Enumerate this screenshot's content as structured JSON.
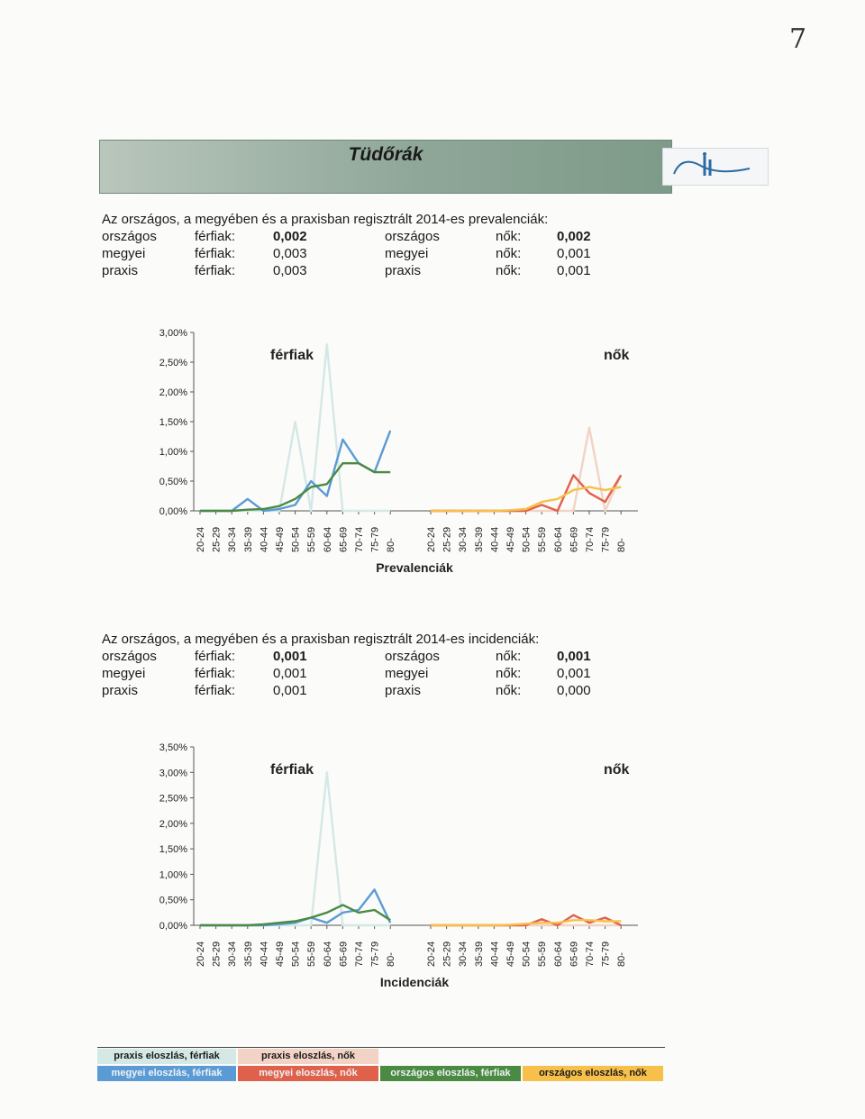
{
  "page_number": "7",
  "banner": {
    "title": "Tüdőrák"
  },
  "prevalence": {
    "heading": "Az országos, a megyében és a praxisban regisztrált 2014-es prevalenciák:",
    "rows": [
      {
        "label_m": "országos",
        "sex_m": "férfiak:",
        "val_m": "0,002",
        "label_f": "országos",
        "sex_f": "nők:",
        "val_f": "0,002"
      },
      {
        "label_m": "megyei",
        "sex_m": "férfiak:",
        "val_m": "0,003",
        "label_f": "megyei",
        "sex_f": "nők:",
        "val_f": "0,001"
      },
      {
        "label_m": "praxis",
        "sex_m": "férfiak:",
        "val_m": "0,003",
        "label_f": "praxis",
        "sex_f": "nők:",
        "val_f": "0,001"
      }
    ]
  },
  "incidence": {
    "heading": "Az országos, a megyében és a praxisban regisztrált 2014-es incidenciák:",
    "rows": [
      {
        "label_m": "országos",
        "sex_m": "férfiak:",
        "val_m": "0,001",
        "label_f": "országos",
        "sex_f": "nők:",
        "val_f": "0,001"
      },
      {
        "label_m": "megyei",
        "sex_m": "férfiak:",
        "val_m": "0,001",
        "label_f": "megyei",
        "sex_f": "nők:",
        "val_f": "0,001"
      },
      {
        "label_m": "praxis",
        "sex_m": "férfiak:",
        "val_m": "0,001",
        "label_f": "praxis",
        "sex_f": "nők:",
        "val_f": "0,000"
      }
    ]
  },
  "chart_data": [
    {
      "type": "line",
      "title": "",
      "xlabel": "Prevalenciák",
      "ylabel": "",
      "panel_labels": [
        "férfiak",
        "nők"
      ],
      "yticks": [
        "0,00%",
        "0,50%",
        "1,00%",
        "1,50%",
        "2,00%",
        "2,50%",
        "3,00%"
      ],
      "ylim": [
        0,
        3.0
      ],
      "categories": [
        "20-24",
        "25-29",
        "30-34",
        "35-39",
        "40-44",
        "45-49",
        "50-54",
        "55-59",
        "60-64",
        "65-69",
        "70-74",
        "75-79",
        "80-"
      ],
      "series": [
        {
          "name": "praxis eloszlás, férfiak",
          "color": "#d4e8e6",
          "panel": "férfiak",
          "values": [
            0,
            0,
            0,
            0,
            0,
            0,
            1.5,
            0,
            2.8,
            0,
            0,
            0,
            0
          ]
        },
        {
          "name": "megyei eloszlás, férfiak",
          "color": "#5b9bd5",
          "panel": "férfiak",
          "values": [
            0,
            0,
            0,
            0.2,
            0,
            0.03,
            0.1,
            0.5,
            0.25,
            1.2,
            0.8,
            0.65,
            1.35
          ]
        },
        {
          "name": "országos eloszlás, férfiak",
          "color": "#4a8a42",
          "panel": "férfiak",
          "values": [
            0,
            0,
            0,
            0.02,
            0.03,
            0.08,
            0.2,
            0.4,
            0.45,
            0.8,
            0.8,
            0.65,
            0.65
          ]
        },
        {
          "name": "praxis eloszlás, nők",
          "color": "#f2d3c6",
          "panel": "nők",
          "values": [
            0,
            0,
            0,
            0,
            0,
            0,
            0,
            0,
            0,
            0,
            1.4,
            0,
            0.6
          ]
        },
        {
          "name": "megyei eloszlás, nők",
          "color": "#e0614b",
          "panel": "nők",
          "values": [
            0,
            0,
            0,
            0,
            0,
            0,
            0,
            0.1,
            0,
            0.6,
            0.3,
            0.15,
            0.6
          ]
        },
        {
          "name": "országos eloszlás, nők",
          "color": "#f7c04a",
          "panel": "nők",
          "values": [
            0,
            0,
            0,
            0,
            0,
            0.01,
            0.03,
            0.15,
            0.2,
            0.35,
            0.4,
            0.35,
            0.4
          ]
        }
      ]
    },
    {
      "type": "line",
      "title": "",
      "xlabel": "Incidenciák",
      "ylabel": "",
      "panel_labels": [
        "férfiak",
        "nők"
      ],
      "yticks": [
        "0,00%",
        "0,50%",
        "1,00%",
        "1,50%",
        "2,00%",
        "2,50%",
        "3,00%",
        "3,50%"
      ],
      "ylim": [
        0,
        3.5
      ],
      "categories": [
        "20-24",
        "25-29",
        "30-34",
        "35-39",
        "40-44",
        "45-49",
        "50-54",
        "55-59",
        "60-64",
        "65-69",
        "70-74",
        "75-79",
        "80-"
      ],
      "series": [
        {
          "name": "praxis eloszlás, férfiak",
          "color": "#d4e8e6",
          "panel": "férfiak",
          "values": [
            0,
            0,
            0,
            0,
            0,
            0,
            0,
            0,
            3.0,
            0,
            0,
            0,
            0
          ]
        },
        {
          "name": "megyei eloszlás, férfiak",
          "color": "#5b9bd5",
          "panel": "férfiak",
          "values": [
            0,
            0,
            0,
            0,
            0,
            0.02,
            0.05,
            0.15,
            0.05,
            0.25,
            0.3,
            0.7,
            0.05
          ]
        },
        {
          "name": "országos eloszlás, férfiak",
          "color": "#4a8a42",
          "panel": "férfiak",
          "values": [
            0,
            0,
            0,
            0,
            0.02,
            0.05,
            0.08,
            0.15,
            0.25,
            0.4,
            0.25,
            0.3,
            0.1
          ]
        },
        {
          "name": "praxis eloszlás, nők",
          "color": "#f2d3c6",
          "panel": "nők",
          "values": [
            0,
            0,
            0,
            0,
            0,
            0,
            0,
            0,
            0,
            0,
            0,
            0,
            0
          ]
        },
        {
          "name": "megyei eloszlás, nők",
          "color": "#e0614b",
          "panel": "nők",
          "values": [
            0,
            0,
            0,
            0,
            0,
            0,
            0,
            0.12,
            0,
            0.2,
            0.05,
            0.15,
            0
          ]
        },
        {
          "name": "országos eloszlás, nők",
          "color": "#f7c04a",
          "panel": "nők",
          "values": [
            0,
            0,
            0,
            0,
            0,
            0.01,
            0.03,
            0.05,
            0.05,
            0.1,
            0.1,
            0.08,
            0.08
          ]
        }
      ]
    }
  ],
  "legend": [
    {
      "label": "praxis eloszlás, férfiak",
      "color": "#d4e8e6"
    },
    {
      "label": "praxis eloszlás, nők",
      "color": "#f2d3c6"
    },
    {
      "label": "megyei eloszlás, férfiak",
      "color": "#5b9bd5"
    },
    {
      "label": "megyei eloszlás, nők",
      "color": "#e0614b"
    },
    {
      "label": "országos eloszlás, férfiak",
      "color": "#4a8a42"
    },
    {
      "label": "országos eloszlás, nők",
      "color": "#f7c04a"
    }
  ]
}
